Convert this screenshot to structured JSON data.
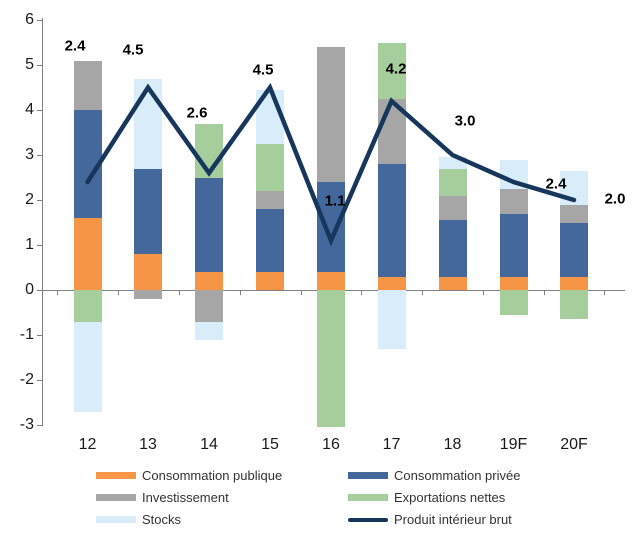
{
  "chart_data": {
    "type": "bar",
    "subtype": "stacked-bars-with-line-overlay",
    "title": "",
    "xlabel": "",
    "ylabel": "",
    "ylim": [
      -3,
      6
    ],
    "ytick_step": 1,
    "grid": false,
    "categories": [
      "12",
      "13",
      "14",
      "15",
      "16",
      "17",
      "18",
      "19F",
      "20F"
    ],
    "series": [
      {
        "name": "Consommation publique",
        "color": "#F79546",
        "values": [
          1.6,
          0.8,
          0.4,
          0.4,
          0.4,
          0.3,
          0.3,
          0.3,
          0.3
        ]
      },
      {
        "name": "Consommation privée",
        "color": "#45689C",
        "values": [
          2.4,
          1.9,
          2.1,
          1.4,
          2.0,
          2.5,
          1.25,
          1.4,
          1.2
        ]
      },
      {
        "name": "Investissement",
        "color": "#A6A6A6",
        "values": [
          1.1,
          -0.2,
          -0.7,
          0.4,
          3.0,
          1.45,
          0.55,
          0.55,
          0.4
        ]
      },
      {
        "name": "Exportations nettes",
        "color": "#A5CE9C",
        "values": [
          -0.7,
          0,
          1.2,
          1.05,
          -3.05,
          1.25,
          0.6,
          -0.55,
          -0.65
        ]
      },
      {
        "name": "Stocks",
        "color": "#D9ECF9",
        "values": [
          -2.0,
          2.0,
          -0.4,
          1.2,
          0,
          -1.3,
          0.25,
          0.65,
          0.75
        ]
      }
    ],
    "line": {
      "name": "Produit intérieur brut",
      "color": "#16365C",
      "values": [
        2.4,
        4.5,
        2.6,
        4.5,
        1.1,
        4.2,
        3.0,
        2.4,
        2.0
      ]
    },
    "data_labels": [
      "2.4",
      "4.5",
      "2.6",
      "4.5",
      "1.1",
      "4.2",
      "3.0",
      "2.4",
      "2.0"
    ],
    "legend_position": "bottom"
  },
  "legend": {
    "items": [
      {
        "label": "Consommation publique",
        "color": "#F79546",
        "type": "bar",
        "col": 0,
        "row": 0
      },
      {
        "label": "Consommation privée",
        "color": "#45689C",
        "type": "bar",
        "col": 1,
        "row": 0
      },
      {
        "label": "Investissement",
        "color": "#A6A6A6",
        "type": "bar",
        "col": 0,
        "row": 1
      },
      {
        "label": "Exportations nettes",
        "color": "#A5CE9C",
        "type": "bar",
        "col": 1,
        "row": 1
      },
      {
        "label": "Stocks",
        "color": "#D9ECF9",
        "type": "bar",
        "col": 0,
        "row": 2
      },
      {
        "label": "Produit intérieur brut",
        "color": "#16365C",
        "type": "line",
        "col": 1,
        "row": 2
      }
    ]
  },
  "colors": {
    "axis": "#808080",
    "tick_label": "#1a1a1a",
    "data_label": "#000000",
    "background": "#ffffff"
  }
}
